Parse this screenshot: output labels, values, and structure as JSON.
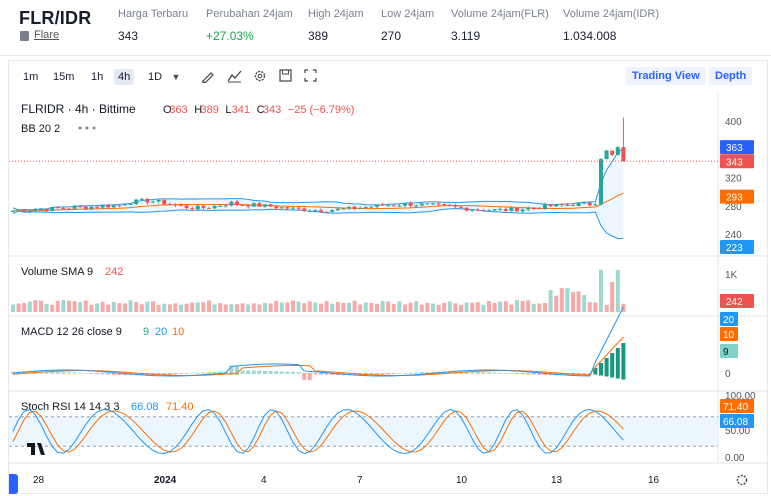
{
  "header": {
    "pair": "FLR/IDR",
    "coin_name": "Flare",
    "stats": [
      {
        "label": "Harga Terbaru",
        "value": "343",
        "color": "#1a1e2c"
      },
      {
        "label": "Perubahan 24jam",
        "value": "+27.03%",
        "color": "#16a34a"
      },
      {
        "label": "High 24jam",
        "value": "389",
        "color": "#1a1e2c"
      },
      {
        "label": "Low 24jam",
        "value": "270",
        "color": "#1a1e2c"
      },
      {
        "label": "Volume 24jam(FLR)",
        "value": "3.119",
        "color": "#1a1e2c"
      },
      {
        "label": "Volume 24jam(IDR)",
        "value": "1.034.008",
        "color": "#1a1e2c"
      }
    ]
  },
  "toolbar": {
    "intervals": [
      "1m",
      "15m",
      "1h",
      "4h",
      "1D"
    ],
    "active_interval": "4h",
    "icons": [
      "dropdown-caret-icon",
      "draw-icon",
      "indicators-icon",
      "settings-icon",
      "save-icon",
      "fullscreen-icon"
    ],
    "trading_view": "Trading View",
    "depth": "Depth"
  },
  "legend": {
    "symbol": "FLRIDR · 4h · Bittime",
    "o_label": "O",
    "o_val": "363",
    "h_label": "H",
    "h_val": "389",
    "l_label": "L",
    "l_val": "341",
    "c_label": "C",
    "c_val": "343",
    "change": "−25 (−6.79%)",
    "bb": "BB 20 2",
    "volume": "Volume SMA 9",
    "volume_val": "242",
    "macd": "MACD 12 26 close 9",
    "macd_v1": "9",
    "macd_v2": "20",
    "macd_v3": "10",
    "stoch": "Stoch RSI 14 14 3 3",
    "stoch_v1": "66.08",
    "stoch_v2": "71.40"
  },
  "price_axis": {
    "ticks": [
      "400",
      "320",
      "280",
      "240"
    ],
    "badges": [
      {
        "text": "363",
        "color": "#2962ff"
      },
      {
        "text": "343",
        "color": "#ef5350"
      },
      {
        "text": "293",
        "color": "#ff6d00"
      },
      {
        "text": "223",
        "color": "#2196f3"
      }
    ]
  },
  "volume_axis": {
    "tick": "1K",
    "badge": "242",
    "badge_color": "#ef5350"
  },
  "macd_axis": {
    "badges": [
      {
        "text": "20",
        "color": "#2196f3"
      },
      {
        "text": "10",
        "color": "#ff6d00"
      },
      {
        "text": "9",
        "color": "#81d4c8"
      }
    ],
    "tick": "0"
  },
  "stoch_axis": {
    "ticks": [
      "100.00",
      "50.00",
      "0.00"
    ],
    "badges": [
      {
        "text": "71.40",
        "color": "#ff6d00"
      },
      {
        "text": "66.08",
        "color": "#2196f3"
      }
    ]
  },
  "time_axis": [
    "28",
    "2024",
    "4",
    "7",
    "10",
    "13",
    "16"
  ],
  "colors": {
    "up": "#26a69a",
    "down": "#ef5350",
    "bb": "#2196f3",
    "bbBasis": "#ff6d00",
    "macd": "#2196f3",
    "signal": "#ff6d00"
  },
  "chart_data": {
    "type": "candlestick",
    "pair": "FLRIDR",
    "interval": "4h",
    "ohlc_last": {
      "open": 363,
      "high": 389,
      "low": 341,
      "close": 343
    },
    "bollinger": {
      "upper": 363,
      "basis": 293,
      "lower": 223
    },
    "x_labels": [
      "28",
      "2024",
      "4",
      "7",
      "10",
      "13",
      "16"
    ]
  }
}
